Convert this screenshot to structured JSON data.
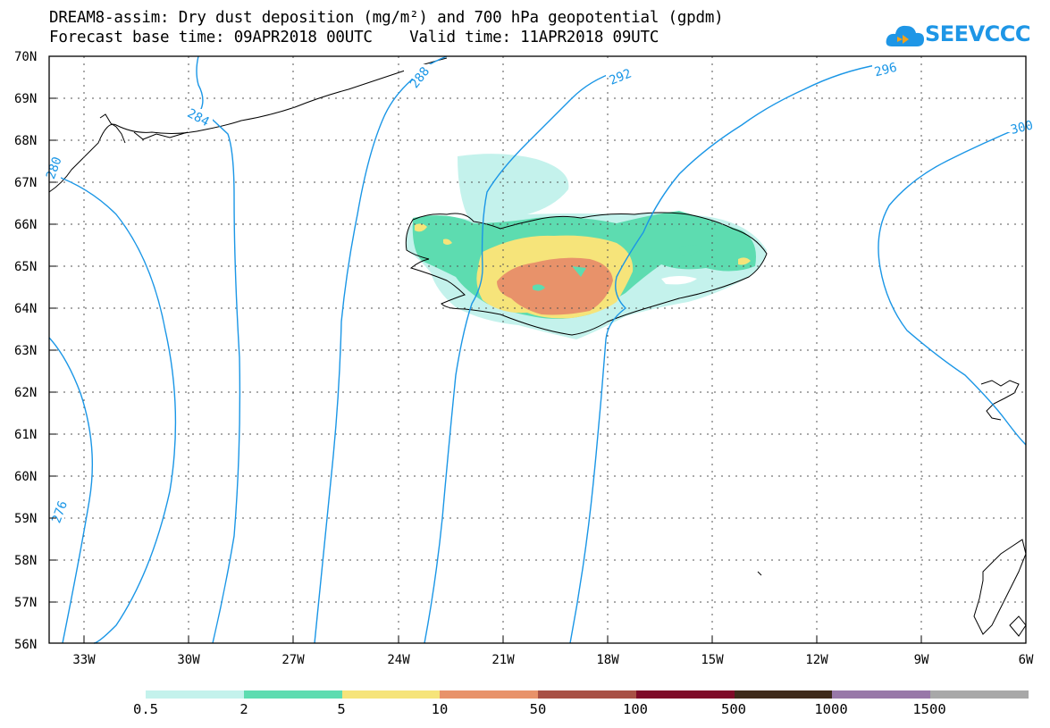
{
  "header": {
    "title_line1": "DREAM8-assim: Dry dust deposition (mg/m²) and 700 hPa geopotential (gpdm)",
    "title_line2": "Forecast base time: 09APR2018 00UTC    Valid time: 11APR2018 09UTC"
  },
  "logo": {
    "text": "SEEVCCC",
    "icon": "cloud-icon"
  },
  "map": {
    "lat_labels": [
      "70N",
      "69N",
      "68N",
      "67N",
      "66N",
      "65N",
      "64N",
      "63N",
      "62N",
      "61N",
      "60N",
      "59N",
      "58N",
      "57N",
      "56N"
    ],
    "lon_labels": [
      "33W",
      "30W",
      "27W",
      "24W",
      "21W",
      "18W",
      "15W",
      "12W",
      "9W",
      "6W"
    ],
    "contour_labels": [
      "284",
      "288",
      "292",
      "296",
      "300",
      "276",
      "280"
    ],
    "contour_color": "#1a96e6",
    "coastline_color": "#000000"
  },
  "legend": {
    "labels": [
      "0.5",
      "2",
      "5",
      "10",
      "50",
      "100",
      "500",
      "1000",
      "1500"
    ],
    "colors": [
      "#c4f2ec",
      "#5ddcb0",
      "#f6e47a",
      "#e8926a",
      "#a85045",
      "#7e0a28",
      "#3e2a1a",
      "#9878a8",
      "#a8a8a8"
    ]
  }
}
